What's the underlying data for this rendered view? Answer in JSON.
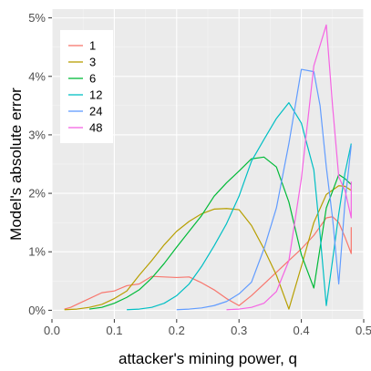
{
  "chart_data": {
    "type": "line",
    "xlabel": "attacker's mining power, q",
    "ylabel": "Model's absolute error",
    "xlim": [
      0,
      0.5
    ],
    "ylim": [
      -0.0015,
      0.0515
    ],
    "x_ticks": [
      0,
      0.1,
      0.2,
      0.3,
      0.4,
      0.5
    ],
    "x_tick_labels": [
      "0.0",
      "0.1",
      "0.2",
      "0.3",
      "0.4",
      "0.5"
    ],
    "y_ticks": [
      0,
      0.01,
      0.02,
      0.03,
      0.04,
      0.05
    ],
    "y_tick_labels": [
      "0%",
      "1%",
      "2%",
      "3%",
      "4%",
      "5%"
    ],
    "grid": true,
    "legend_position": "top-left",
    "panel_background": "#ebebeb",
    "series": [
      {
        "name": "1",
        "color": "#F8766D",
        "points": [
          [
            0.02,
            0.0002
          ],
          [
            0.03,
            0.0005
          ],
          [
            0.04,
            0.001
          ],
          [
            0.06,
            0.002
          ],
          [
            0.08,
            0.003
          ],
          [
            0.1,
            0.0033
          ],
          [
            0.12,
            0.0042
          ],
          [
            0.14,
            0.0045
          ],
          [
            0.16,
            0.0058
          ],
          [
            0.18,
            0.0057
          ],
          [
            0.2,
            0.0056
          ],
          [
            0.22,
            0.0057
          ],
          [
            0.24,
            0.0047
          ],
          [
            0.26,
            0.0035
          ],
          [
            0.28,
            0.002
          ],
          [
            0.3,
            0.0008
          ],
          [
            0.32,
            0.0025
          ],
          [
            0.34,
            0.0045
          ],
          [
            0.36,
            0.0065
          ],
          [
            0.38,
            0.0085
          ],
          [
            0.4,
            0.0105
          ],
          [
            0.42,
            0.0128
          ],
          [
            0.44,
            0.0158
          ],
          [
            0.45,
            0.016
          ],
          [
            0.46,
            0.015
          ],
          [
            0.47,
            0.0125
          ],
          [
            0.48,
            0.0097
          ],
          [
            0.48,
            0.0142
          ]
        ]
      },
      {
        "name": "3",
        "color": "#B79F00",
        "points": [
          [
            0.02,
            0.0001
          ],
          [
            0.04,
            0.0002
          ],
          [
            0.06,
            0.0005
          ],
          [
            0.08,
            0.001
          ],
          [
            0.1,
            0.002
          ],
          [
            0.12,
            0.0033
          ],
          [
            0.14,
            0.006
          ],
          [
            0.16,
            0.0085
          ],
          [
            0.18,
            0.0112
          ],
          [
            0.2,
            0.0135
          ],
          [
            0.22,
            0.0152
          ],
          [
            0.24,
            0.0165
          ],
          [
            0.26,
            0.0173
          ],
          [
            0.28,
            0.0174
          ],
          [
            0.3,
            0.0172
          ],
          [
            0.32,
            0.0145
          ],
          [
            0.34,
            0.0105
          ],
          [
            0.36,
            0.006
          ],
          [
            0.38,
            0.0002
          ],
          [
            0.4,
            0.0075
          ],
          [
            0.42,
            0.015
          ],
          [
            0.44,
            0.0198
          ],
          [
            0.46,
            0.0213
          ],
          [
            0.47,
            0.0212
          ],
          [
            0.48,
            0.0205
          ]
        ]
      },
      {
        "name": "6",
        "color": "#00BA38",
        "points": [
          [
            0.06,
            0.0002
          ],
          [
            0.08,
            0.0005
          ],
          [
            0.1,
            0.0012
          ],
          [
            0.12,
            0.0022
          ],
          [
            0.14,
            0.0035
          ],
          [
            0.16,
            0.0055
          ],
          [
            0.18,
            0.008
          ],
          [
            0.2,
            0.0108
          ],
          [
            0.22,
            0.0135
          ],
          [
            0.24,
            0.0162
          ],
          [
            0.26,
            0.0195
          ],
          [
            0.28,
            0.0218
          ],
          [
            0.3,
            0.0238
          ],
          [
            0.32,
            0.0259
          ],
          [
            0.34,
            0.0262
          ],
          [
            0.36,
            0.0245
          ],
          [
            0.38,
            0.0185
          ],
          [
            0.4,
            0.0095
          ],
          [
            0.42,
            0.0038
          ],
          [
            0.44,
            0.0175
          ],
          [
            0.46,
            0.0232
          ],
          [
            0.47,
            0.0225
          ],
          [
            0.48,
            0.0215
          ]
        ]
      },
      {
        "name": "12",
        "color": "#00BFC4",
        "points": [
          [
            0.12,
            0.0001
          ],
          [
            0.14,
            0.0002
          ],
          [
            0.16,
            0.0005
          ],
          [
            0.18,
            0.0012
          ],
          [
            0.2,
            0.0025
          ],
          [
            0.22,
            0.0045
          ],
          [
            0.24,
            0.0075
          ],
          [
            0.26,
            0.011
          ],
          [
            0.28,
            0.0148
          ],
          [
            0.3,
            0.0195
          ],
          [
            0.32,
            0.0255
          ],
          [
            0.34,
            0.0292
          ],
          [
            0.36,
            0.0328
          ],
          [
            0.38,
            0.0355
          ],
          [
            0.4,
            0.032
          ],
          [
            0.42,
            0.024
          ],
          [
            0.43,
            0.013
          ],
          [
            0.44,
            0.0008
          ],
          [
            0.45,
            0.0085
          ],
          [
            0.46,
            0.0165
          ],
          [
            0.47,
            0.0235
          ],
          [
            0.48,
            0.0285
          ]
        ]
      },
      {
        "name": "24",
        "color": "#619CFF",
        "points": [
          [
            0.2,
            0.0001
          ],
          [
            0.22,
            0.0002
          ],
          [
            0.24,
            0.0004
          ],
          [
            0.26,
            0.0008
          ],
          [
            0.28,
            0.0015
          ],
          [
            0.3,
            0.0028
          ],
          [
            0.32,
            0.0048
          ],
          [
            0.34,
            0.0105
          ],
          [
            0.36,
            0.0175
          ],
          [
            0.38,
            0.0285
          ],
          [
            0.4,
            0.0412
          ],
          [
            0.42,
            0.0408
          ],
          [
            0.43,
            0.035
          ],
          [
            0.44,
            0.0245
          ],
          [
            0.45,
            0.0158
          ],
          [
            0.46,
            0.0045
          ],
          [
            0.47,
            0.0185
          ],
          [
            0.48,
            0.0282
          ]
        ]
      },
      {
        "name": "48",
        "color": "#F564E3",
        "points": [
          [
            0.28,
            0.0001
          ],
          [
            0.3,
            0.0002
          ],
          [
            0.32,
            0.0005
          ],
          [
            0.34,
            0.0012
          ],
          [
            0.36,
            0.0032
          ],
          [
            0.38,
            0.0085
          ],
          [
            0.4,
            0.0225
          ],
          [
            0.42,
            0.0418
          ],
          [
            0.44,
            0.0488
          ],
          [
            0.45,
            0.035
          ],
          [
            0.46,
            0.0228
          ],
          [
            0.47,
            0.0205
          ],
          [
            0.48,
            0.0158
          ],
          [
            0.48,
            0.022
          ]
        ]
      }
    ]
  }
}
